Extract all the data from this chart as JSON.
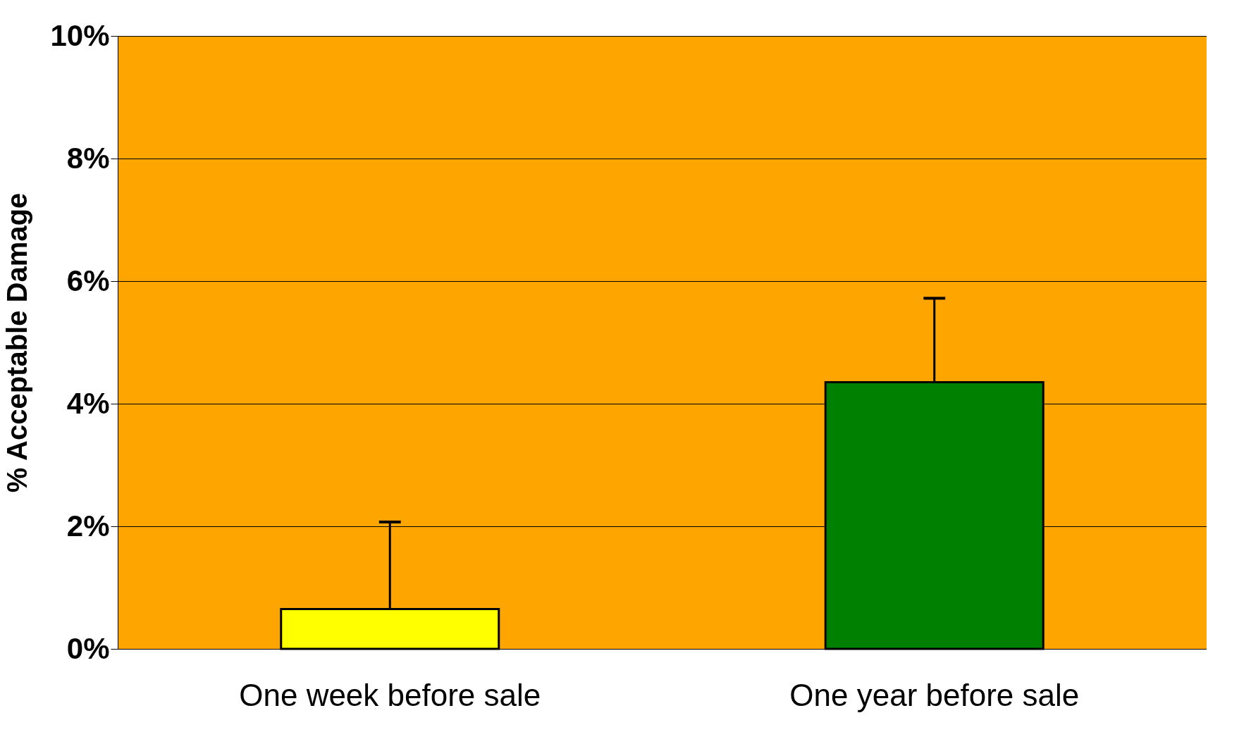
{
  "chart_data": {
    "type": "bar",
    "ylabel": "% Acceptable Damage",
    "categories": [
      "One week before sale",
      "One year before sale"
    ],
    "values": [
      0.65,
      4.35
    ],
    "colors": [
      "#ffff00",
      "#008000"
    ],
    "errors": [
      [
        0.65,
        2.07
      ],
      [
        4.35,
        5.72
      ]
    ],
    "ylim": [
      0,
      10
    ],
    "yticks": [
      {
        "value": 0,
        "label": "0%"
      },
      {
        "value": 2,
        "label": "2%"
      },
      {
        "value": 4,
        "label": "4%"
      },
      {
        "value": 6,
        "label": "6%"
      },
      {
        "value": 8,
        "label": "8%"
      },
      {
        "value": 10,
        "label": "10%"
      }
    ],
    "grid": "y"
  }
}
